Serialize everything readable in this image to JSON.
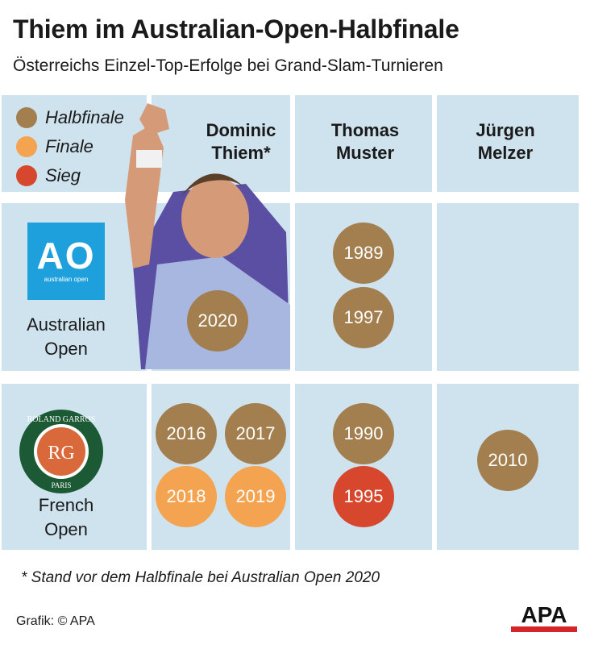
{
  "title": "Thiem im Australian-Open-Halbfinale",
  "subtitle": "Österreichs Einzel-Top-Erfolge bei Grand-Slam-Turnieren",
  "colors": {
    "Halbfinale": "#a37f4f",
    "Finale": "#f4a350",
    "Sieg": "#d6472d",
    "grid": "#cfe3ef"
  },
  "legend": [
    {
      "label": "Halbfinale",
      "color": "#a37f4f"
    },
    {
      "label": "Finale",
      "color": "#f4a350"
    },
    {
      "label": "Sieg",
      "color": "#d6472d"
    }
  ],
  "players": [
    "Dominic Thiem*",
    "Thomas Muster",
    "Jürgen Melzer"
  ],
  "tournaments": [
    {
      "name": "Australian Open",
      "logo": "ao-logo"
    },
    {
      "name": "French Open",
      "logo": "roland-garros-logo"
    }
  ],
  "chart_data": {
    "type": "table",
    "title": "Thiem im Australian-Open-Halbfinale",
    "subtitle": "Österreichs Einzel-Top-Erfolge bei Grand-Slam-Turnieren",
    "columns": [
      "Dominic Thiem*",
      "Thomas Muster",
      "Jürgen Melzer"
    ],
    "rows": [
      "Australian Open",
      "French Open"
    ],
    "cells": [
      {
        "row": "Australian Open",
        "column": "Dominic Thiem*",
        "results": [
          {
            "year": "2020",
            "result": "Halbfinale"
          }
        ]
      },
      {
        "row": "Australian Open",
        "column": "Thomas Muster",
        "results": [
          {
            "year": "1989",
            "result": "Halbfinale"
          },
          {
            "year": "1997",
            "result": "Halbfinale"
          }
        ]
      },
      {
        "row": "Australian Open",
        "column": "Jürgen Melzer",
        "results": []
      },
      {
        "row": "French Open",
        "column": "Dominic Thiem*",
        "results": [
          {
            "year": "2016",
            "result": "Halbfinale"
          },
          {
            "year": "2017",
            "result": "Halbfinale"
          },
          {
            "year": "2018",
            "result": "Finale"
          },
          {
            "year": "2019",
            "result": "Finale"
          }
        ]
      },
      {
        "row": "French Open",
        "column": "Thomas Muster",
        "results": [
          {
            "year": "1990",
            "result": "Halbfinale"
          },
          {
            "year": "1995",
            "result": "Sieg"
          }
        ]
      },
      {
        "row": "French Open",
        "column": "Jürgen Melzer",
        "results": [
          {
            "year": "2010",
            "result": "Halbfinale"
          }
        ]
      }
    ],
    "legend": [
      "Halbfinale",
      "Finale",
      "Sieg"
    ]
  },
  "footnote": "* Stand vor dem Halbfinale bei Australian Open 2020",
  "credit": "Grafik: © APA",
  "logos": {
    "ao": {
      "main": "AO",
      "sub": "australian open"
    },
    "rg": {
      "top": "ROLAND GARROS",
      "bottom": "PARIS",
      "monogram": "RG"
    },
    "apa": "APA"
  }
}
